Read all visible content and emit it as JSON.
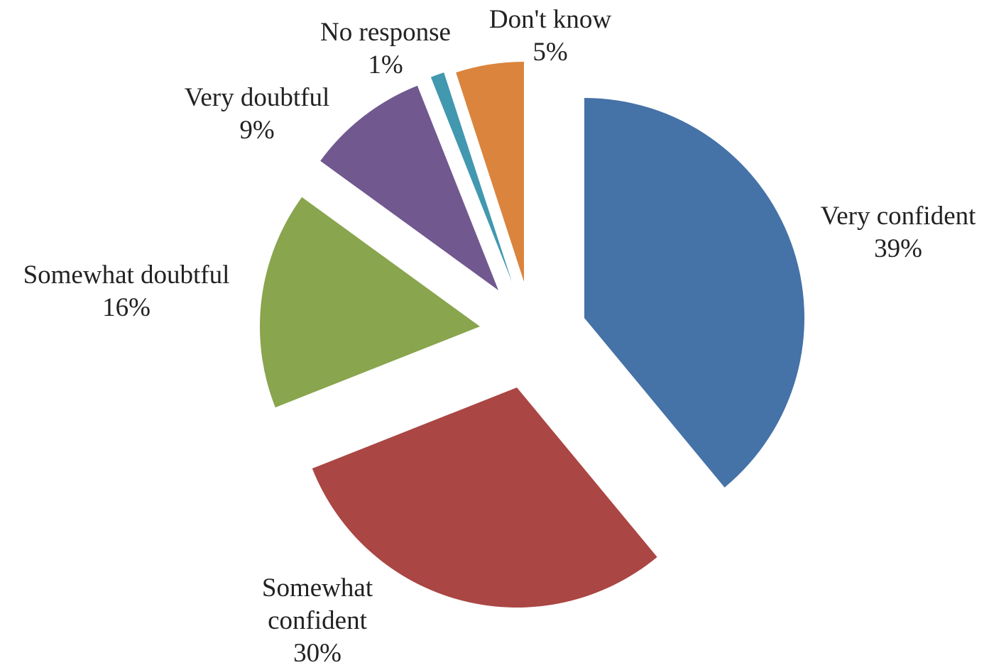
{
  "chart_data": {
    "type": "pie",
    "exploded": true,
    "start": "12 o'clock, clockwise",
    "slices": [
      {
        "label_lines": [
          "Very confident"
        ],
        "percent_label": "39%",
        "value": 39,
        "color": "#4572A7"
      },
      {
        "label_lines": [
          "Somewhat",
          "confident"
        ],
        "percent_label": "30%",
        "value": 30,
        "color": "#AA4643"
      },
      {
        "label_lines": [
          "Somewhat doubtful"
        ],
        "percent_label": "16%",
        "value": 16,
        "color": "#89A54E"
      },
      {
        "label_lines": [
          "Very doubtful"
        ],
        "percent_label": "9%",
        "value": 9,
        "color": "#71588F"
      },
      {
        "label_lines": [
          "No response"
        ],
        "percent_label": "1%",
        "value": 1,
        "color": "#4198AF"
      },
      {
        "label_lines": [
          "Don't know"
        ],
        "percent_label": "5%",
        "value": 5,
        "color": "#DB843D"
      }
    ]
  }
}
